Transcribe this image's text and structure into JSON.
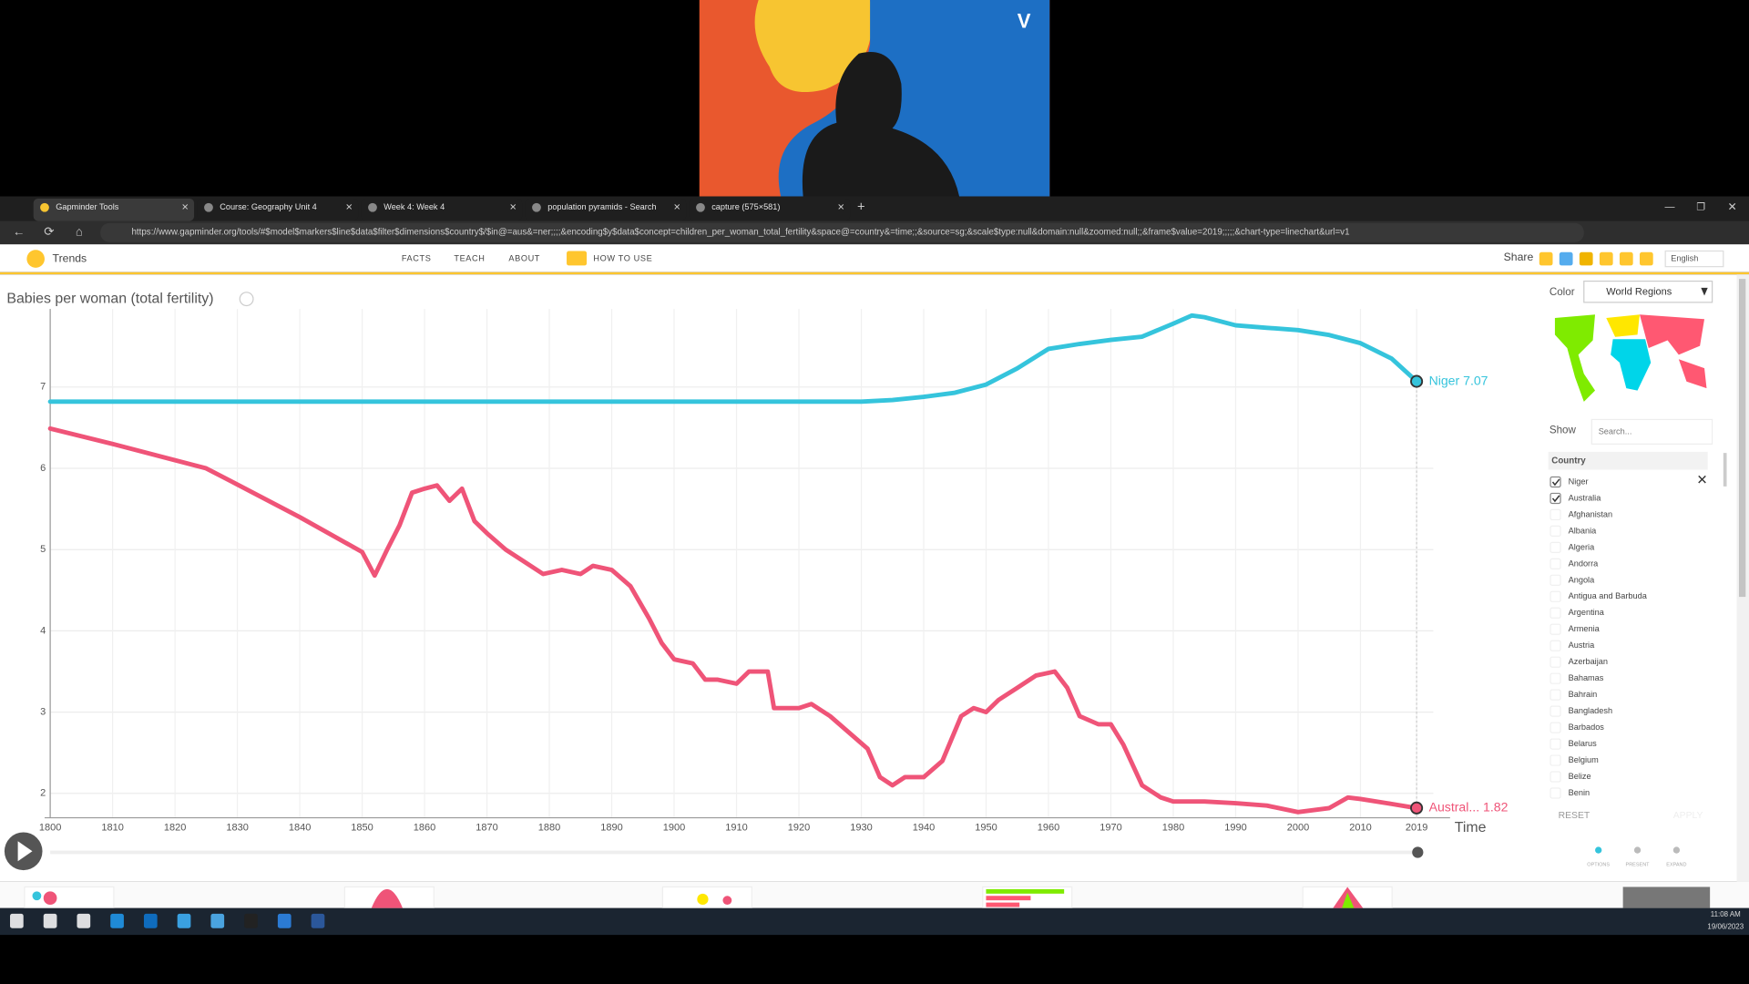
{
  "video": {
    "logo": "V"
  },
  "tabs": [
    "Gapminder Tools",
    "Course: Geography Unit 4",
    "Week 4: Week 4",
    "population pyramids - Search",
    "capture (575×581)"
  ],
  "url": "https://www.gapminder.org/tools/#$model$markers$line$data$filter$dimensions$country$/$in@=aus&=ner;;;;&encoding$y$data$concept=children_per_woman_total_fertility&space@=country&=time;;&source=sg;&scale$type:null&domain:null&zoomed:null;;&frame$value=2019;;;;;&chart-type=linechart&url=v1",
  "app": {
    "name": "Trends",
    "menu": [
      "FACTS",
      "TEACH",
      "ABOUT",
      "HOW TO USE"
    ],
    "share": "Share",
    "language": "English"
  },
  "sidebar": {
    "color_label": "Color",
    "color_value": "World Regions",
    "show_label": "Show",
    "search_placeholder": "Search...",
    "list_header": "Country",
    "countries": [
      {
        "name": "Niger",
        "checked": true
      },
      {
        "name": "Australia",
        "checked": true
      },
      {
        "name": "Afghanistan",
        "checked": false
      },
      {
        "name": "Albania",
        "checked": false
      },
      {
        "name": "Algeria",
        "checked": false
      },
      {
        "name": "Andorra",
        "checked": false
      },
      {
        "name": "Angola",
        "checked": false
      },
      {
        "name": "Antigua and Barbuda",
        "checked": false
      },
      {
        "name": "Argentina",
        "checked": false
      },
      {
        "name": "Armenia",
        "checked": false
      },
      {
        "name": "Austria",
        "checked": false
      },
      {
        "name": "Azerbaijan",
        "checked": false
      },
      {
        "name": "Bahamas",
        "checked": false
      },
      {
        "name": "Bahrain",
        "checked": false
      },
      {
        "name": "Bangladesh",
        "checked": false
      },
      {
        "name": "Barbados",
        "checked": false
      },
      {
        "name": "Belarus",
        "checked": false
      },
      {
        "name": "Belgium",
        "checked": false
      },
      {
        "name": "Belize",
        "checked": false
      },
      {
        "name": "Benin",
        "checked": false
      }
    ],
    "reset": "RESET",
    "apply": "APPLY",
    "buttons": [
      "OPTIONS",
      "PRESENT",
      "EXPAND"
    ]
  },
  "taskbar": {
    "time": "11:08 AM",
    "date": "19/06/2023"
  },
  "chart_data": {
    "type": "line",
    "y_label": "Babies per woman (total fertility)",
    "x_label": "Time",
    "xlim": [
      1800,
      2019
    ],
    "xticks": [
      1800,
      1810,
      1820,
      1830,
      1840,
      1850,
      1860,
      1870,
      1880,
      1890,
      1900,
      1910,
      1920,
      1930,
      1940,
      1950,
      1960,
      1970,
      1980,
      1990,
      2000,
      2010,
      2019
    ],
    "ylim": [
      1.7,
      7.96
    ],
    "yticks": [
      2,
      3,
      4,
      5,
      6,
      7
    ],
    "grid": true,
    "end_labels": [
      "Niger 7.07",
      "Austral... 1.82"
    ],
    "series": [
      {
        "name": "Niger",
        "color": "#35c4dc",
        "x": [
          1800,
          1930,
          1935,
          1940,
          1945,
          1950,
          1955,
          1960,
          1965,
          1970,
          1975,
          1980,
          1983,
          1985,
          1990,
          1995,
          2000,
          2005,
          2010,
          2015,
          2019
        ],
        "values": [
          6.82,
          6.82,
          6.84,
          6.88,
          6.93,
          7.03,
          7.23,
          7.47,
          7.53,
          7.58,
          7.62,
          7.78,
          7.88,
          7.86,
          7.76,
          7.73,
          7.7,
          7.64,
          7.54,
          7.35,
          7.07
        ]
      },
      {
        "name": "Australia",
        "color": "#ef5478",
        "x": [
          1800,
          1810,
          1820,
          1825,
          1830,
          1840,
          1850,
          1852,
          1854,
          1856,
          1858,
          1860,
          1862,
          1864,
          1866,
          1868,
          1870,
          1873,
          1876,
          1879,
          1882,
          1885,
          1887,
          1890,
          1893,
          1896,
          1898,
          1900,
          1903,
          1905,
          1907,
          1910,
          1912,
          1915,
          1916,
          1920,
          1922,
          1925,
          1928,
          1931,
          1933,
          1935,
          1937,
          1940,
          1943,
          1946,
          1948,
          1950,
          1952,
          1955,
          1958,
          1961,
          1963,
          1965,
          1968,
          1970,
          1972,
          1975,
          1978,
          1980,
          1985,
          1990,
          1995,
          2000,
          2005,
          2008,
          2010,
          2015,
          2019
        ],
        "values": [
          6.49,
          6.3,
          6.1,
          6.0,
          5.8,
          5.4,
          4.97,
          4.68,
          5.0,
          5.3,
          5.7,
          5.75,
          5.79,
          5.6,
          5.75,
          5.35,
          5.2,
          5.0,
          4.85,
          4.7,
          4.75,
          4.7,
          4.8,
          4.75,
          4.55,
          4.15,
          3.85,
          3.65,
          3.6,
          3.4,
          3.4,
          3.35,
          3.5,
          3.5,
          3.05,
          3.05,
          3.1,
          2.95,
          2.75,
          2.55,
          2.2,
          2.1,
          2.2,
          2.2,
          2.4,
          2.95,
          3.05,
          3.0,
          3.15,
          3.3,
          3.45,
          3.5,
          3.3,
          2.95,
          2.85,
          2.85,
          2.6,
          2.1,
          1.95,
          1.9,
          1.9,
          1.88,
          1.85,
          1.77,
          1.82,
          1.95,
          1.93,
          1.87,
          1.82
        ]
      }
    ]
  }
}
